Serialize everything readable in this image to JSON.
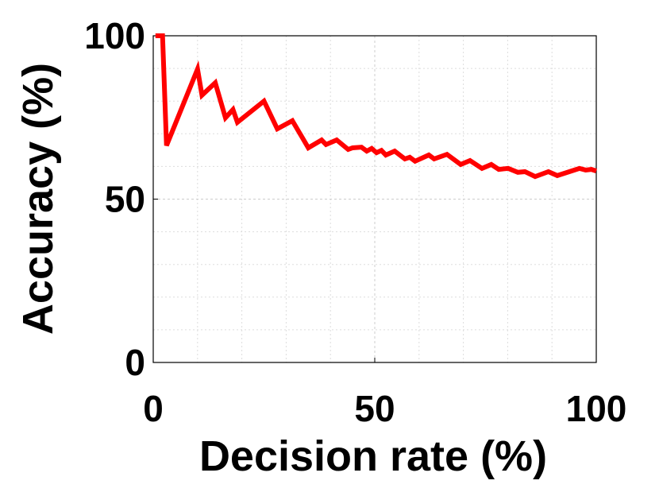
{
  "chart_data": {
    "type": "line",
    "xlabel": "Decision rate (%)",
    "ylabel": "Accuracy (%)",
    "xlim": [
      0,
      100
    ],
    "ylim": [
      0,
      100
    ],
    "xticks": [
      0,
      50,
      100
    ],
    "yticks": [
      0,
      50,
      100
    ],
    "minor_xticks": [
      10,
      20,
      30,
      40,
      60,
      70,
      80,
      90
    ],
    "minor_yticks": [
      10,
      20,
      30,
      40,
      60,
      70,
      80,
      90
    ],
    "grid": true,
    "x": [
      0.5,
      2.1,
      3,
      10,
      11,
      14,
      16.3,
      18,
      19,
      25,
      28,
      31.4,
      35,
      38,
      39,
      41.4,
      44,
      45,
      47,
      48.2,
      49.3,
      50.4,
      51.5,
      52.5,
      54.5,
      56.8,
      57.9,
      59.1,
      62.2,
      63.4,
      66.3,
      69.4,
      71.5,
      74.2,
      76.3,
      78,
      80.1,
      82.3,
      83.9,
      86.2,
      89.2,
      91.2,
      96.2,
      97.6,
      98.9,
      100
    ],
    "series": [
      {
        "color": "#ff0000",
        "values": [
          100,
          100,
          66.4,
          89.8,
          81.8,
          85.6,
          74.9,
          77.4,
          73.5,
          80,
          71.5,
          74,
          65.7,
          68.1,
          66.7,
          68.1,
          65.2,
          65.7,
          65.9,
          64.7,
          65.5,
          64.2,
          64.9,
          63.5,
          64.7,
          62.3,
          62.8,
          61.6,
          63.5,
          62.3,
          63.7,
          60.6,
          61.8,
          59.4,
          60.6,
          59.1,
          59.4,
          58.2,
          58.4,
          56.9,
          58.4,
          57.2,
          59.4,
          58.9,
          59.1,
          58.6
        ]
      }
    ]
  }
}
